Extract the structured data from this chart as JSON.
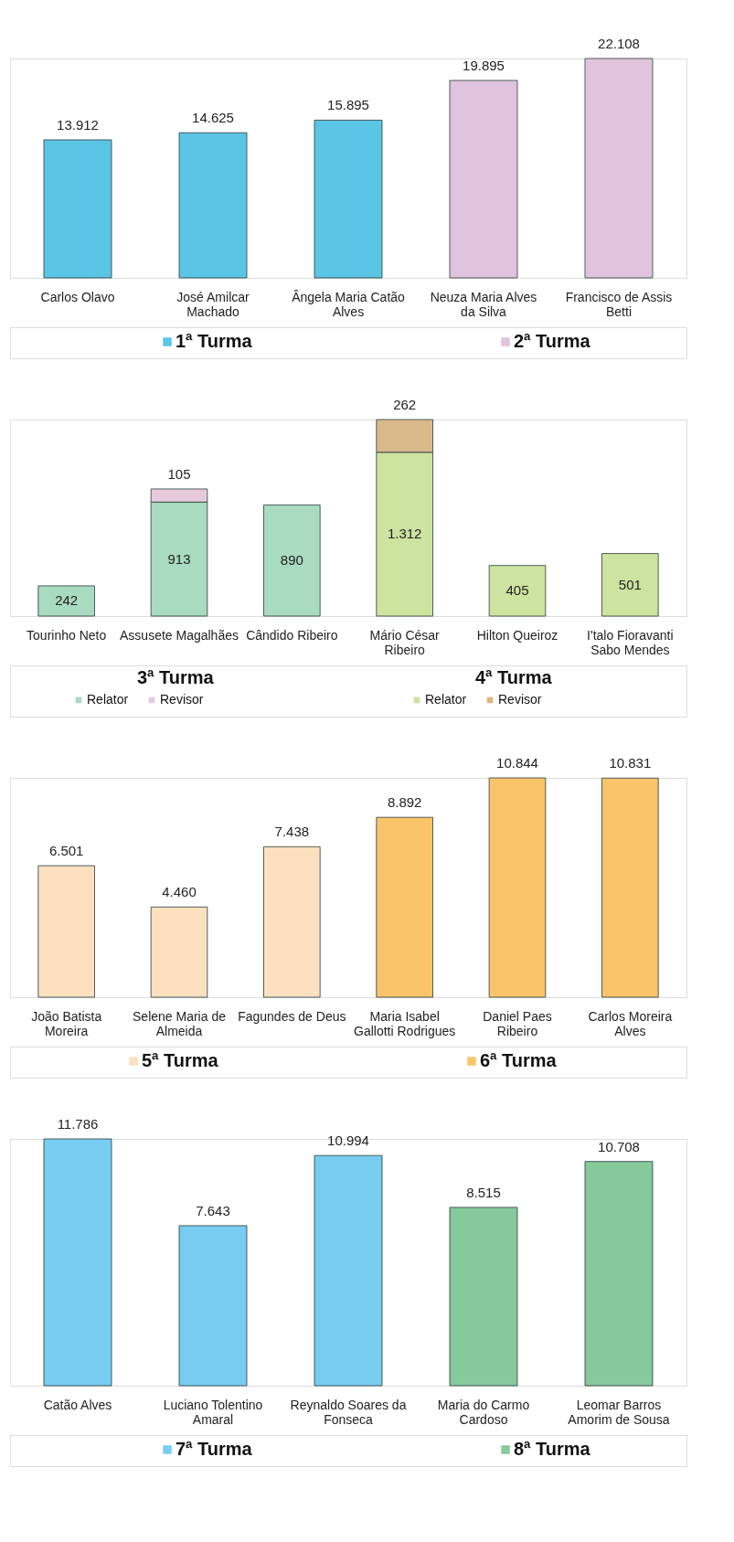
{
  "chart_data": [
    {
      "type": "bar",
      "legend": "bottom",
      "categories": [
        "Carlos Olavo",
        "José Amilcar Machado",
        "Ângela Maria Catão Alves",
        "Neuza Maria Alves da Silva",
        "Francisco de Assis Betti"
      ],
      "series": [
        {
          "name": "1ª Turma",
          "color": "#5bc5e6",
          "values": [
            13912,
            14625,
            15895,
            null,
            null
          ],
          "value_labels": [
            "13.912",
            "14.625",
            "15.895",
            null,
            null
          ]
        },
        {
          "name": "2ª Turma",
          "color": "#e0c3dc",
          "values": [
            null,
            null,
            null,
            19895,
            22108
          ],
          "value_labels": [
            null,
            null,
            null,
            "19.895",
            "22.108"
          ]
        }
      ]
    },
    {
      "type": "bar",
      "stacked": true,
      "legend": "bottom",
      "annotations": [
        "3ª Turma",
        "4ª Turma"
      ],
      "categories": [
        "Tourinho Neto",
        "Assusete Magalhães",
        "Cândido Ribeiro",
        "Mário César Ribeiro",
        "Hilton Queiroz",
        "I'talo Fioravanti Sabo Mendes"
      ],
      "series": [
        {
          "name": "Relator",
          "color": "#a8dbbf",
          "values": [
            242,
            913,
            890,
            null,
            null,
            null
          ],
          "value_labels": [
            "242",
            "913",
            "890",
            null,
            null,
            null
          ]
        },
        {
          "name": "Revisor",
          "color": "#e5cbdb",
          "values": [
            null,
            105,
            null,
            null,
            null,
            null
          ],
          "value_labels": [
            null,
            "105",
            null,
            null,
            null,
            null
          ]
        },
        {
          "name": "Relator",
          "color": "#cde3a0",
          "values": [
            null,
            null,
            null,
            1312,
            405,
            501
          ],
          "value_labels": [
            null,
            null,
            null,
            "1.312",
            "405",
            "501"
          ]
        },
        {
          "name": "Revisor",
          "color": "#d9b98a",
          "values": [
            null,
            null,
            null,
            262,
            null,
            null
          ],
          "value_labels": [
            null,
            null,
            null,
            "262",
            null,
            null
          ]
        }
      ]
    },
    {
      "type": "bar",
      "legend": "bottom",
      "categories": [
        "João Batista Moreira",
        "Selene Maria de Almeida",
        "Fagundes de Deus",
        "Maria Isabel Gallotti Rodrigues",
        "Daniel Paes Ribeiro",
        "Carlos Moreira Alves"
      ],
      "series": [
        {
          "name": "5ª Turma",
          "color": "#fce0bf",
          "values": [
            6501,
            4460,
            7438,
            null,
            null,
            null
          ],
          "value_labels": [
            "6.501",
            "4.460",
            "7.438",
            null,
            null,
            null
          ]
        },
        {
          "name": "6ª Turma",
          "color": "#f9c46a",
          "values": [
            null,
            null,
            null,
            8892,
            10844,
            10831
          ],
          "value_labels": [
            null,
            null,
            null,
            "8.892",
            "10.844",
            "10.831"
          ]
        }
      ]
    },
    {
      "type": "bar",
      "legend": "bottom",
      "categories": [
        "Catão Alves",
        "Luciano Tolentino Amaral",
        "Reynaldo Soares da Fonseca",
        "Maria do Carmo Cardoso",
        "Leomar Barros Amorim de Sousa"
      ],
      "series": [
        {
          "name": "7ª Turma",
          "color": "#78ccf0",
          "values": [
            11786,
            7643,
            10994,
            null,
            null
          ],
          "value_labels": [
            "11.786",
            "7.643",
            "10.994",
            null,
            null
          ]
        },
        {
          "name": "8ª Turma",
          "color": "#86c99a",
          "values": [
            null,
            null,
            null,
            8515,
            10708
          ],
          "value_labels": [
            null,
            null,
            null,
            "8.515",
            "10.708"
          ]
        }
      ]
    }
  ]
}
